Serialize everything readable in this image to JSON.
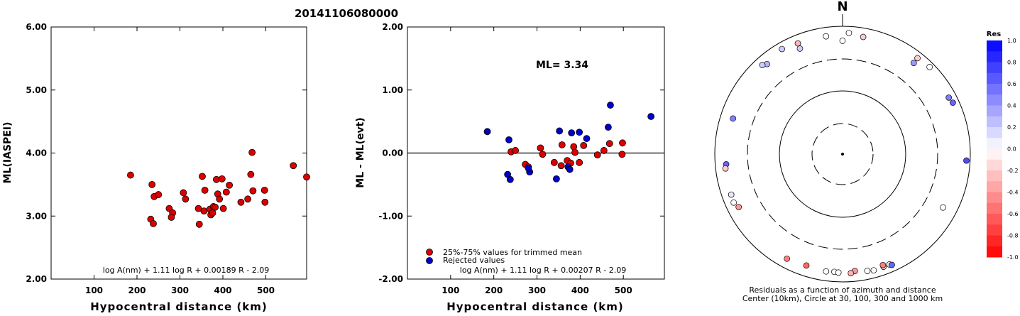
{
  "title": "20141106080000",
  "chart_data": [
    {
      "type": "scatter",
      "ylabel": "ML(IASPEI)",
      "xlabel": "Hypocentral distance (km)",
      "xlim": [
        0,
        595
      ],
      "ylim": [
        2.0,
        6.0
      ],
      "xticks": [
        "100",
        "200",
        "300",
        "400",
        "500"
      ],
      "yticks": [
        "2.00",
        "3.00",
        "4.00",
        "5.00",
        "6.00"
      ],
      "formula": "log A(nm) + 1.11 log R + 0.00189 R - 2.09",
      "marker_color": "#dd0000",
      "points": [
        [
          185,
          3.65
        ],
        [
          235,
          3.5
        ],
        [
          240,
          3.31
        ],
        [
          250,
          3.34
        ],
        [
          232,
          2.95
        ],
        [
          238,
          2.88
        ],
        [
          275,
          3.12
        ],
        [
          283,
          3.05
        ],
        [
          280,
          2.98
        ],
        [
          308,
          3.37
        ],
        [
          313,
          3.27
        ],
        [
          343,
          3.12
        ],
        [
          345,
          2.87
        ],
        [
          352,
          3.63
        ],
        [
          356,
          3.08
        ],
        [
          358,
          3.41
        ],
        [
          370,
          3.11
        ],
        [
          372,
          3.02
        ],
        [
          376,
          3.05
        ],
        [
          378,
          3.15
        ],
        [
          382,
          3.14
        ],
        [
          385,
          3.58
        ],
        [
          388,
          3.35
        ],
        [
          392,
          3.27
        ],
        [
          398,
          3.59
        ],
        [
          401,
          3.12
        ],
        [
          408,
          3.38
        ],
        [
          415,
          3.49
        ],
        [
          442,
          3.22
        ],
        [
          458,
          3.27
        ],
        [
          465,
          3.66
        ],
        [
          468,
          4.01
        ],
        [
          470,
          3.4
        ],
        [
          497,
          3.41
        ],
        [
          498,
          3.22
        ],
        [
          564,
          3.8
        ],
        [
          595,
          3.62
        ]
      ]
    },
    {
      "type": "scatter",
      "ylabel": "ML - ML(evt)",
      "xlabel": "Hypocentral distance (km)",
      "xlim": [
        0,
        595
      ],
      "ylim": [
        -2.0,
        2.0
      ],
      "xticks": [
        "100",
        "200",
        "300",
        "400",
        "500"
      ],
      "yticks": [
        "-2.00",
        "-1.00",
        "0.00",
        "1.00",
        "2.00"
      ],
      "annotation": "ML= 3.34",
      "formula": "log A(nm) + 1.11 log R + 0.00207 R - 2.09",
      "legend": [
        {
          "label": "25%-75% values for trimmed mean",
          "color": "#dd0000"
        },
        {
          "label": "Rejected values",
          "color": "#0000cc"
        }
      ],
      "series": [
        {
          "name": "25%-75% values for trimmed mean",
          "color": "#dd0000",
          "points": [
            [
              240,
              0.02
            ],
            [
              250,
              0.04
            ],
            [
              273,
              -0.18
            ],
            [
              308,
              0.08
            ],
            [
              313,
              -0.02
            ],
            [
              340,
              -0.15
            ],
            [
              356,
              -0.2
            ],
            [
              358,
              0.13
            ],
            [
              370,
              -0.12
            ],
            [
              378,
              -0.16
            ],
            [
              385,
              0.1
            ],
            [
              388,
              0.01
            ],
            [
              398,
              -0.15
            ],
            [
              408,
              0.12
            ],
            [
              440,
              -0.03
            ],
            [
              455,
              0.04
            ],
            [
              468,
              0.15
            ],
            [
              497,
              -0.02
            ],
            [
              498,
              0.16
            ],
            [
              280,
              -0.22
            ]
          ]
        },
        {
          "name": "Rejected values",
          "color": "#0000cc",
          "points": [
            [
              185,
              0.34
            ],
            [
              232,
              -0.34
            ],
            [
              235,
              0.21
            ],
            [
              238,
              -0.42
            ],
            [
              283,
              -0.3
            ],
            [
              280,
              -0.24
            ],
            [
              345,
              -0.41
            ],
            [
              352,
              0.35
            ],
            [
              372,
              -0.22
            ],
            [
              376,
              -0.26
            ],
            [
              380,
              0.32
            ],
            [
              398,
              0.33
            ],
            [
              415,
              0.23
            ],
            [
              465,
              0.41
            ],
            [
              470,
              0.76
            ],
            [
              564,
              0.58
            ]
          ]
        }
      ]
    }
  ],
  "polar": {
    "north_label": "N",
    "caption_line1": "Residuals as a function of azimuth and distance",
    "caption_line2": "Center (10km), Circle at 30, 100, 300 and 1000 km",
    "stations": [
      {
        "az": 0,
        "dist": 690,
        "res": 0.0
      },
      {
        "az": 3,
        "dist": 860,
        "res": 0.0
      },
      {
        "az": -8,
        "dist": 810,
        "res": 0.0
      },
      {
        "az": 10,
        "dist": 810,
        "res": -0.2
      },
      {
        "az": -22,
        "dist": 820,
        "res": -0.3
      },
      {
        "az": -30,
        "dist": 860,
        "res": 0.2
      },
      {
        "az": -22,
        "dist": 700,
        "res": 0.2
      },
      {
        "az": -40,
        "dist": 780,
        "res": 0.3
      },
      {
        "az": -42,
        "dist": 830,
        "res": 0.2
      },
      {
        "az": 38,
        "dist": 870,
        "res": -0.2
      },
      {
        "az": 45,
        "dist": 900,
        "res": 0.0
      },
      {
        "az": 38,
        "dist": 740,
        "res": 0.4
      },
      {
        "az": 62,
        "dist": 840,
        "res": 0.5
      },
      {
        "az": 65,
        "dist": 870,
        "res": 0.6
      },
      {
        "az": 93,
        "dist": 920,
        "res": 0.7
      },
      {
        "az": 118,
        "dist": 700,
        "res": 0.0
      },
      {
        "az": -72,
        "dist": 730,
        "res": 0.5
      },
      {
        "az": -95,
        "dist": 765,
        "res": 0.6
      },
      {
        "az": -97,
        "dist": 790,
        "res": -0.2
      },
      {
        "az": -110,
        "dist": 800,
        "res": 0.1
      },
      {
        "az": -114,
        "dist": 815,
        "res": 0.0
      },
      {
        "az": -117,
        "dist": 760,
        "res": -0.4
      },
      {
        "az": -152,
        "dist": 800,
        "res": -0.5
      },
      {
        "az": -162,
        "dist": 770,
        "res": -0.6
      },
      {
        "az": -172,
        "dist": 800,
        "res": 0.0
      },
      {
        "az": -176,
        "dist": 790,
        "res": 0.0
      },
      {
        "az": -178,
        "dist": 800,
        "res": 0.0
      },
      {
        "az": 174,
        "dist": 780,
        "res": -0.4
      },
      {
        "az": 168,
        "dist": 820,
        "res": 0.0
      },
      {
        "az": 165,
        "dist": 840,
        "res": 0.0
      },
      {
        "az": 160,
        "dist": 830,
        "res": -0.2
      },
      {
        "az": 160,
        "dist": 790,
        "res": -0.5
      },
      {
        "az": 157,
        "dist": 830,
        "res": 0.1
      },
      {
        "az": 156,
        "dist": 860,
        "res": 0.6
      },
      {
        "az": 176,
        "dist": 820,
        "res": -0.3
      }
    ]
  },
  "colorbar": {
    "title": "Res",
    "labels": [
      "1.0",
      "0.8",
      "0.6",
      "0.4",
      "0.2",
      "0.0",
      "-0.2",
      "-0.4",
      "-0.6",
      "-0.8",
      "-1.0"
    ]
  }
}
